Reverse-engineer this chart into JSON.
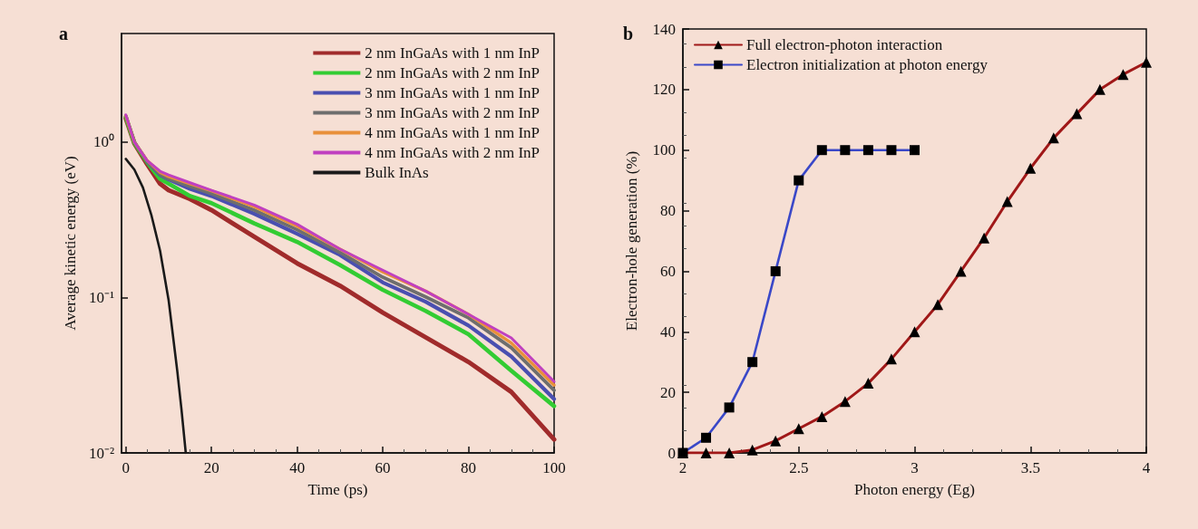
{
  "chart_data": [
    {
      "type": "line",
      "title": "a",
      "xlabel": "Time (ps)",
      "ylabel": "Average kinetic energy (eV)",
      "log": "y",
      "grid": false,
      "legend": "top right",
      "marker": "none",
      "line_style": "solid",
      "xlim": [
        -1,
        100
      ],
      "xticks": [
        0,
        20,
        40,
        60,
        80,
        100
      ],
      "ylim": [
        0.01,
        5
      ],
      "yticks": [
        {
          "value": 0.01,
          "label": "10⁻²"
        },
        {
          "value": 0.1,
          "label": "10⁻¹"
        },
        {
          "value": 1,
          "label": "10⁰"
        }
      ],
      "x": [
        0,
        2,
        5,
        8,
        10,
        15,
        20,
        30,
        40,
        50,
        60,
        70,
        80,
        90,
        100
      ],
      "series": [
        {
          "name": "2 nm InGaAs with 1 nm InP",
          "color": "#a02b2b",
          "values": [
            1.42,
            0.98,
            0.72,
            0.54,
            0.49,
            0.43,
            0.365,
            0.246,
            0.166,
            0.119,
            0.08,
            0.0555,
            0.0385,
            0.0247,
            0.0122
          ]
        },
        {
          "name": "2 nm InGaAs with 2 nm InP",
          "color": "#33cc33",
          "values": [
            1.45,
            0.99,
            0.74,
            0.58,
            0.54,
            0.45,
            0.405,
            0.3,
            0.228,
            0.162,
            0.112,
            0.082,
            0.058,
            0.0338,
            0.02
          ]
        },
        {
          "name": "3 nm InGaAs with 1 nm InP",
          "color": "#4a4fb0",
          "values": [
            null,
            null,
            0.75,
            0.615,
            0.575,
            0.5,
            0.45,
            0.346,
            0.257,
            0.188,
            0.125,
            0.094,
            0.066,
            0.0418,
            0.0222
          ]
        },
        {
          "name": "3 nm InGaAs with 2 nm InP",
          "color": "#6e6e6e",
          "values": [
            1.47,
            1.0,
            0.75,
            0.62,
            0.58,
            0.52,
            0.466,
            0.365,
            0.273,
            0.195,
            0.135,
            0.101,
            0.074,
            0.0475,
            0.0253
          ]
        },
        {
          "name": "4 nm InGaAs with 1 nm InP",
          "color": "#e8903a",
          "values": [
            1.48,
            1.0,
            0.76,
            0.64,
            0.6,
            0.54,
            0.486,
            0.384,
            0.288,
            0.205,
            0.146,
            0.11,
            0.078,
            0.051,
            0.0273
          ]
        },
        {
          "name": "4 nm InGaAs with 2 nm InP",
          "color": "#c040c0",
          "values": [
            1.5,
            1.0,
            0.76,
            0.65,
            0.615,
            0.548,
            0.49,
            0.394,
            0.296,
            0.205,
            0.15,
            0.11,
            0.078,
            0.055,
            0.0288
          ]
        },
        {
          "name": "Bulk InAs",
          "color": "#1a1a1a",
          "x": [
            0,
            2,
            4,
            6,
            8,
            10,
            12,
            13,
            14
          ],
          "values": [
            0.78,
            0.665,
            0.51,
            0.337,
            0.2,
            0.096,
            0.034,
            0.019,
            0.01
          ]
        }
      ]
    },
    {
      "type": "line",
      "title": "b",
      "xlabel": "Photon energy (Eg)",
      "ylabel": "Electron-hole generation (%)",
      "grid": false,
      "legend": "top left",
      "line_style": "solid",
      "xlim": [
        2,
        4
      ],
      "xticks": [
        2,
        2.5,
        3,
        3.5,
        4
      ],
      "ylim": [
        0,
        140
      ],
      "yticks": [
        0,
        20,
        40,
        60,
        80,
        100,
        120,
        140
      ],
      "series": [
        {
          "name": "Full electron-photon interaction",
          "color": "#a01818",
          "marker": "triangle",
          "x": [
            2,
            2.1,
            2.2,
            2.3,
            2.4,
            2.5,
            2.6,
            2.7,
            2.8,
            2.9,
            3,
            3.1,
            3.2,
            3.3,
            3.4,
            3.5,
            3.6,
            3.7,
            3.8,
            3.9,
            4
          ],
          "values": [
            0,
            0,
            0,
            1,
            4,
            8,
            12,
            17,
            23,
            31,
            40,
            49,
            60,
            71,
            83,
            94,
            104,
            112,
            120,
            125,
            129
          ]
        },
        {
          "name": "Electron initialization at photon energy",
          "color": "#3a48c8",
          "marker": "square",
          "x": [
            2,
            2.1,
            2.2,
            2.3,
            2.4,
            2.5,
            2.6,
            2.7,
            2.8,
            2.9,
            3
          ],
          "values": [
            0,
            5,
            15,
            30,
            60,
            90,
            100,
            100,
            100,
            100,
            100
          ]
        }
      ]
    }
  ]
}
